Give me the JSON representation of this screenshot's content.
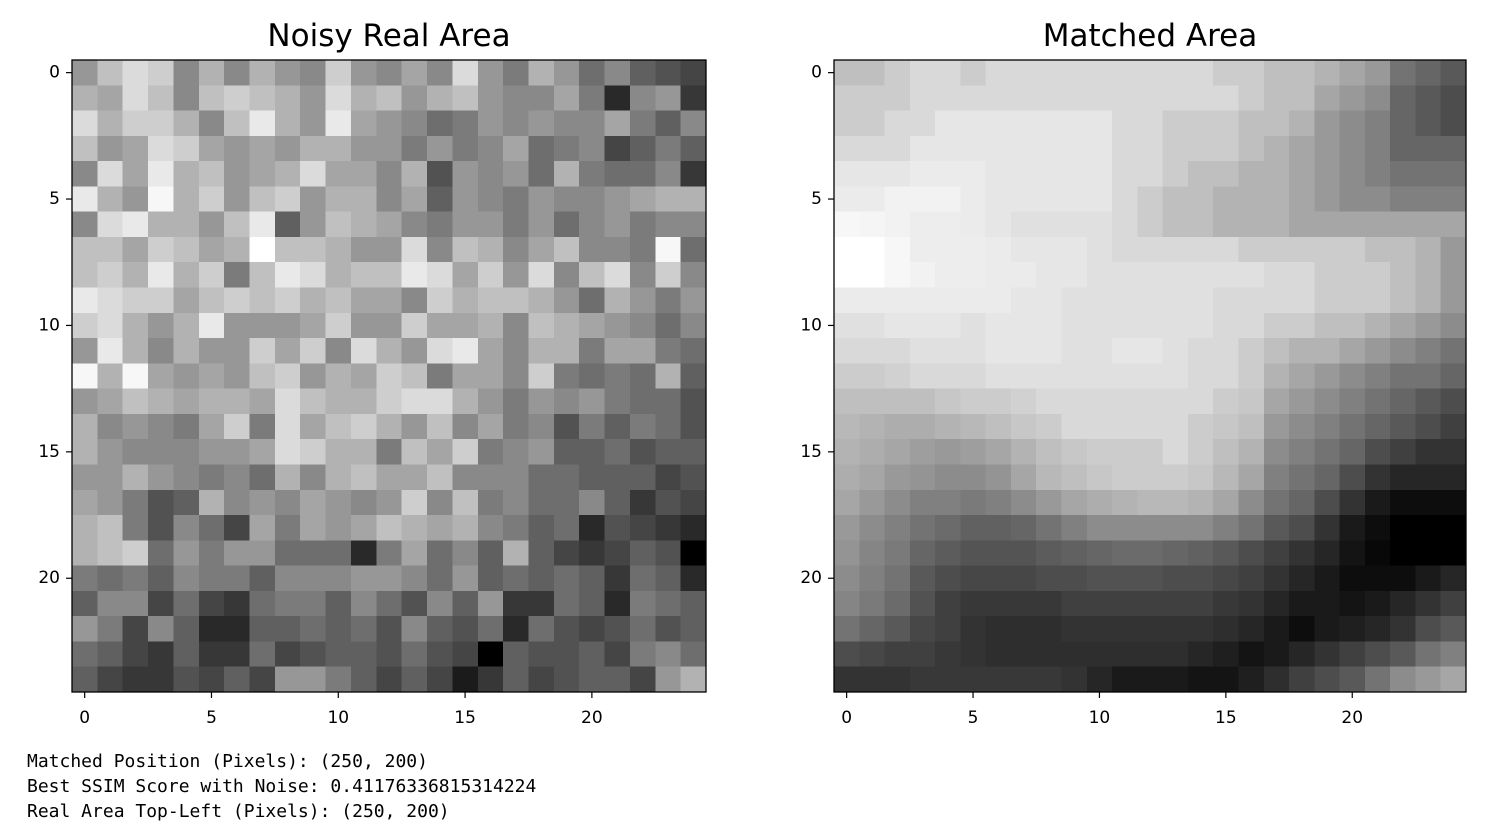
{
  "chart_data": [
    {
      "type": "heatmap",
      "title": "Noisy Real Area",
      "colormap": "gray",
      "xlim": [
        -0.5,
        24.5
      ],
      "ylim": [
        24.5,
        -0.5
      ],
      "xticks": [
        0,
        5,
        10,
        15,
        20
      ],
      "yticks": [
        0,
        5,
        10,
        15,
        20
      ],
      "z": [
        [
          60,
          75,
          85,
          80,
          55,
          70,
          55,
          70,
          60,
          55,
          80,
          60,
          55,
          65,
          55,
          85,
          60,
          50,
          70,
          60,
          45,
          55,
          40,
          35,
          30
        ],
        [
          70,
          65,
          85,
          75,
          55,
          75,
          80,
          75,
          70,
          60,
          85,
          70,
          75,
          60,
          70,
          75,
          60,
          55,
          55,
          65,
          50,
          20,
          55,
          60,
          25
        ],
        [
          85,
          70,
          80,
          80,
          70,
          55,
          75,
          90,
          70,
          60,
          90,
          65,
          60,
          55,
          45,
          50,
          60,
          55,
          60,
          55,
          55,
          65,
          50,
          40,
          55
        ],
        [
          75,
          60,
          65,
          85,
          80,
          65,
          60,
          65,
          60,
          70,
          70,
          60,
          60,
          50,
          60,
          50,
          55,
          65,
          45,
          50,
          55,
          30,
          40,
          50,
          40
        ],
        [
          55,
          85,
          65,
          90,
          70,
          75,
          60,
          65,
          70,
          85,
          65,
          65,
          55,
          70,
          35,
          60,
          55,
          60,
          45,
          70,
          50,
          45,
          45,
          55,
          25
        ],
        [
          90,
          70,
          60,
          95,
          70,
          80,
          60,
          75,
          80,
          60,
          70,
          70,
          55,
          65,
          40,
          60,
          55,
          50,
          60,
          55,
          55,
          60,
          65,
          70,
          70
        ],
        [
          55,
          85,
          90,
          70,
          70,
          60,
          75,
          90,
          40,
          60,
          75,
          70,
          65,
          55,
          50,
          60,
          60,
          50,
          60,
          45,
          55,
          60,
          50,
          55,
          55
        ],
        [
          75,
          75,
          65,
          80,
          75,
          65,
          70,
          98,
          75,
          75,
          70,
          60,
          60,
          85,
          55,
          75,
          70,
          55,
          65,
          75,
          55,
          55,
          50,
          95,
          45
        ],
        [
          75,
          80,
          70,
          90,
          70,
          80,
          50,
          75,
          90,
          85,
          70,
          75,
          75,
          90,
          85,
          65,
          80,
          60,
          85,
          55,
          75,
          85,
          55,
          80,
          55
        ],
        [
          90,
          85,
          80,
          80,
          65,
          75,
          80,
          75,
          80,
          70,
          75,
          65,
          65,
          55,
          80,
          70,
          75,
          75,
          70,
          60,
          45,
          70,
          60,
          50,
          60
        ],
        [
          80,
          85,
          70,
          60,
          70,
          90,
          60,
          60,
          60,
          65,
          80,
          60,
          60,
          80,
          65,
          65,
          70,
          55,
          75,
          70,
          65,
          60,
          55,
          45,
          55
        ],
        [
          60,
          90,
          70,
          55,
          70,
          60,
          60,
          80,
          65,
          80,
          55,
          85,
          70,
          60,
          85,
          90,
          65,
          55,
          70,
          70,
          50,
          65,
          65,
          50,
          45
        ],
        [
          95,
          70,
          95,
          65,
          60,
          65,
          60,
          75,
          80,
          60,
          70,
          65,
          80,
          75,
          50,
          65,
          65,
          55,
          80,
          50,
          45,
          50,
          45,
          70,
          40
        ],
        [
          60,
          65,
          75,
          70,
          65,
          70,
          70,
          65,
          85,
          75,
          70,
          70,
          80,
          85,
          85,
          70,
          60,
          50,
          60,
          55,
          60,
          50,
          45,
          45,
          35
        ],
        [
          70,
          55,
          60,
          55,
          50,
          65,
          80,
          50,
          85,
          65,
          75,
          80,
          70,
          60,
          75,
          55,
          65,
          50,
          55,
          35,
          50,
          40,
          50,
          45,
          35
        ],
        [
          70,
          60,
          55,
          55,
          55,
          60,
          60,
          65,
          85,
          80,
          70,
          70,
          50,
          75,
          65,
          80,
          50,
          55,
          60,
          40,
          40,
          45,
          35,
          40,
          40
        ],
        [
          60,
          60,
          70,
          60,
          55,
          50,
          55,
          45,
          70,
          55,
          70,
          75,
          65,
          65,
          75,
          55,
          55,
          55,
          45,
          45,
          40,
          40,
          40,
          30,
          35
        ],
        [
          65,
          60,
          50,
          35,
          40,
          70,
          55,
          60,
          55,
          65,
          60,
          55,
          60,
          80,
          55,
          75,
          50,
          55,
          45,
          45,
          55,
          40,
          25,
          35,
          30
        ],
        [
          70,
          75,
          50,
          35,
          55,
          45,
          30,
          65,
          50,
          65,
          60,
          65,
          75,
          70,
          65,
          70,
          55,
          50,
          40,
          45,
          20,
          35,
          30,
          25,
          20
        ],
        [
          70,
          75,
          80,
          45,
          60,
          50,
          60,
          60,
          45,
          45,
          45,
          20,
          50,
          65,
          45,
          55,
          40,
          70,
          40,
          30,
          25,
          30,
          40,
          35,
          5
        ],
        [
          50,
          45,
          50,
          40,
          55,
          50,
          50,
          40,
          55,
          55,
          55,
          60,
          60,
          55,
          45,
          60,
          40,
          45,
          40,
          45,
          40,
          25,
          45,
          40,
          20
        ],
        [
          40,
          55,
          55,
          30,
          45,
          30,
          25,
          45,
          50,
          50,
          40,
          55,
          45,
          35,
          55,
          40,
          60,
          25,
          25,
          45,
          40,
          20,
          50,
          45,
          40
        ],
        [
          60,
          50,
          30,
          55,
          40,
          20,
          20,
          40,
          40,
          45,
          40,
          45,
          35,
          55,
          40,
          35,
          45,
          20,
          45,
          35,
          30,
          35,
          45,
          35,
          40
        ],
        [
          45,
          40,
          30,
          25,
          40,
          25,
          25,
          45,
          30,
          35,
          40,
          40,
          35,
          45,
          35,
          30,
          5,
          40,
          35,
          35,
          40,
          30,
          50,
          55,
          45
        ],
        [
          40,
          30,
          25,
          25,
          35,
          30,
          40,
          30,
          60,
          60,
          50,
          40,
          30,
          40,
          30,
          15,
          25,
          40,
          30,
          35,
          40,
          40,
          30,
          60,
          70
        ]
      ]
    },
    {
      "type": "heatmap",
      "title": "Matched Area",
      "colormap": "gray",
      "xlim": [
        -0.5,
        24.5
      ],
      "ylim": [
        24.5,
        -0.5
      ],
      "xticks": [
        0,
        5,
        10,
        15,
        20
      ],
      "yticks": [
        0,
        5,
        10,
        15,
        20
      ],
      "z": [
        [
          75,
          75,
          80,
          85,
          85,
          80,
          85,
          85,
          85,
          85,
          85,
          85,
          85,
          85,
          85,
          80,
          80,
          75,
          75,
          70,
          65,
          60,
          45,
          40,
          35
        ],
        [
          80,
          80,
          80,
          85,
          85,
          85,
          85,
          85,
          85,
          85,
          85,
          85,
          85,
          85,
          85,
          85,
          80,
          75,
          75,
          65,
          60,
          55,
          40,
          35,
          30
        ],
        [
          80,
          80,
          85,
          85,
          90,
          90,
          90,
          90,
          90,
          90,
          90,
          85,
          85,
          80,
          80,
          80,
          75,
          75,
          70,
          60,
          55,
          50,
          40,
          35,
          30
        ],
        [
          85,
          85,
          85,
          90,
          90,
          90,
          90,
          90,
          90,
          90,
          90,
          85,
          85,
          80,
          80,
          80,
          75,
          70,
          65,
          60,
          55,
          50,
          40,
          40,
          40
        ],
        [
          90,
          90,
          90,
          92,
          92,
          92,
          90,
          90,
          90,
          90,
          90,
          85,
          85,
          80,
          75,
          75,
          70,
          70,
          65,
          60,
          55,
          50,
          45,
          45,
          45
        ],
        [
          92,
          92,
          95,
          95,
          95,
          92,
          90,
          90,
          90,
          90,
          90,
          85,
          80,
          75,
          75,
          70,
          70,
          70,
          65,
          60,
          55,
          55,
          50,
          50,
          50
        ],
        [
          97,
          96,
          95,
          93,
          93,
          92,
          90,
          88,
          88,
          88,
          88,
          85,
          80,
          75,
          75,
          70,
          70,
          70,
          65,
          65,
          65,
          65,
          65,
          65,
          65
        ],
        [
          100,
          100,
          97,
          93,
          93,
          93,
          92,
          90,
          90,
          90,
          88,
          85,
          85,
          85,
          85,
          85,
          80,
          80,
          80,
          80,
          80,
          75,
          75,
          70,
          60
        ],
        [
          100,
          100,
          97,
          95,
          93,
          93,
          92,
          92,
          90,
          90,
          88,
          88,
          88,
          88,
          88,
          88,
          88,
          85,
          85,
          80,
          80,
          80,
          75,
          70,
          60
        ],
        [
          92,
          92,
          92,
          92,
          92,
          92,
          92,
          90,
          90,
          88,
          88,
          88,
          88,
          88,
          88,
          85,
          85,
          85,
          85,
          80,
          80,
          80,
          75,
          70,
          60
        ],
        [
          88,
          88,
          90,
          90,
          90,
          88,
          90,
          90,
          90,
          88,
          88,
          88,
          88,
          88,
          88,
          85,
          85,
          80,
          80,
          75,
          75,
          70,
          65,
          60,
          55
        ],
        [
          85,
          85,
          85,
          88,
          88,
          88,
          90,
          90,
          90,
          88,
          88,
          90,
          90,
          88,
          85,
          85,
          80,
          75,
          70,
          70,
          65,
          60,
          55,
          50,
          45
        ],
        [
          80,
          80,
          82,
          85,
          85,
          85,
          88,
          88,
          88,
          88,
          88,
          88,
          88,
          88,
          85,
          85,
          80,
          70,
          65,
          60,
          55,
          50,
          45,
          45,
          40
        ],
        [
          75,
          75,
          75,
          75,
          78,
          80,
          80,
          82,
          85,
          85,
          85,
          85,
          85,
          85,
          85,
          80,
          78,
          65,
          60,
          55,
          50,
          45,
          40,
          35,
          30
        ],
        [
          72,
          70,
          68,
          68,
          70,
          72,
          75,
          78,
          80,
          85,
          85,
          85,
          85,
          85,
          80,
          78,
          75,
          60,
          55,
          50,
          45,
          40,
          35,
          30,
          25
        ],
        [
          70,
          68,
          65,
          62,
          60,
          62,
          65,
          70,
          75,
          78,
          80,
          80,
          80,
          85,
          80,
          75,
          70,
          55,
          50,
          45,
          40,
          30,
          25,
          20,
          20
        ],
        [
          68,
          65,
          60,
          58,
          55,
          55,
          58,
          65,
          72,
          75,
          78,
          80,
          80,
          80,
          78,
          72,
          65,
          50,
          45,
          40,
          30,
          20,
          15,
          15,
          15
        ],
        [
          65,
          60,
          55,
          50,
          50,
          48,
          50,
          55,
          60,
          65,
          68,
          70,
          72,
          72,
          70,
          65,
          55,
          45,
          40,
          30,
          20,
          10,
          5,
          5,
          5
        ],
        [
          60,
          55,
          50,
          45,
          42,
          38,
          38,
          40,
          45,
          50,
          55,
          55,
          55,
          55,
          55,
          50,
          45,
          35,
          30,
          20,
          10,
          5,
          0,
          0,
          0
        ],
        [
          58,
          52,
          48,
          40,
          36,
          33,
          33,
          33,
          36,
          38,
          40,
          42,
          42,
          40,
          38,
          35,
          30,
          25,
          20,
          15,
          8,
          3,
          0,
          0,
          0
        ],
        [
          55,
          50,
          45,
          35,
          30,
          28,
          28,
          28,
          30,
          30,
          32,
          32,
          32,
          30,
          30,
          28,
          25,
          20,
          15,
          10,
          5,
          5,
          5,
          10,
          15
        ],
        [
          52,
          48,
          42,
          32,
          25,
          22,
          22,
          22,
          22,
          25,
          25,
          25,
          25,
          25,
          25,
          22,
          20,
          15,
          10,
          10,
          8,
          10,
          15,
          20,
          25
        ],
        [
          45,
          40,
          35,
          28,
          25,
          20,
          18,
          18,
          18,
          20,
          20,
          20,
          20,
          20,
          20,
          18,
          15,
          10,
          5,
          10,
          12,
          15,
          20,
          30,
          35
        ],
        [
          30,
          28,
          25,
          25,
          22,
          20,
          18,
          18,
          18,
          18,
          18,
          18,
          18,
          18,
          15,
          12,
          8,
          10,
          15,
          20,
          25,
          30,
          35,
          45,
          50
        ],
        [
          20,
          20,
          20,
          22,
          22,
          22,
          22,
          22,
          22,
          20,
          15,
          10,
          10,
          10,
          8,
          8,
          12,
          18,
          25,
          30,
          35,
          45,
          55,
          60,
          65
        ]
      ]
    }
  ],
  "output_lines": [
    "Matched Position (Pixels): (250, 200)",
    "Best SSIM Score with Noise: 0.41176336815314224",
    "Real Area Top-Left (Pixels): (250, 200)"
  ]
}
